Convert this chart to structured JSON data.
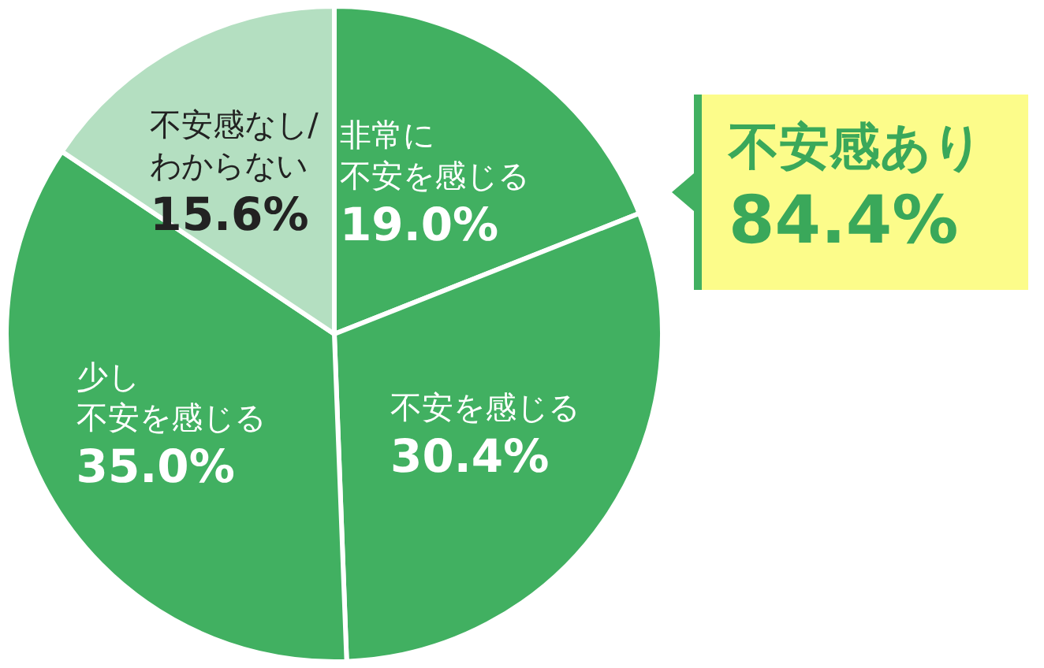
{
  "chart_data": {
    "type": "pie",
    "categories": [
      "非常に不安を感じる",
      "不安を感じる",
      "少し不安を感じる",
      "不安感なし/わからない"
    ],
    "values": [
      19.0,
      30.4,
      35.0,
      15.6
    ],
    "colors": [
      "#41b061",
      "#41b061",
      "#41b061",
      "#b4dfc1"
    ],
    "value_labels": [
      "19.0%",
      "30.4%",
      "35.0%",
      "15.6%"
    ],
    "annotations": [
      "不安感あり\n84.4%"
    ]
  }
}
